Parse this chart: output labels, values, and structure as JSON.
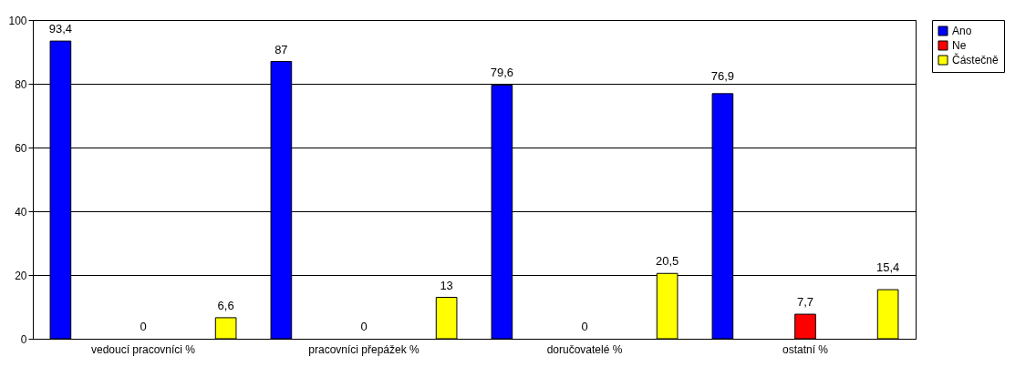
{
  "chart_data": {
    "type": "bar",
    "categories": [
      "vedoucí pracovníci %",
      "pracovníci přepážek %",
      "doručovatelé  %",
      "ostatní  %"
    ],
    "series": [
      {
        "name": "Ano",
        "color": "#0000ff",
        "values": [
          93.4,
          87,
          79.6,
          76.9
        ],
        "value_labels": [
          "93,4",
          "87",
          "79,6",
          "76,9"
        ]
      },
      {
        "name": "Ne",
        "color": "#ff0000",
        "values": [
          0,
          0,
          0,
          7.7
        ],
        "value_labels": [
          "0",
          "0",
          "0",
          "7,7"
        ]
      },
      {
        "name": "Částečně",
        "color": "#ffff00",
        "values": [
          6.6,
          13,
          20.5,
          15.4
        ],
        "value_labels": [
          "6,6",
          "13",
          "20,5",
          "15,4"
        ]
      }
    ],
    "ylim": [
      0,
      100
    ],
    "yticks": [
      0,
      20,
      40,
      60,
      80,
      100
    ],
    "grid": "y",
    "legend": "right"
  }
}
